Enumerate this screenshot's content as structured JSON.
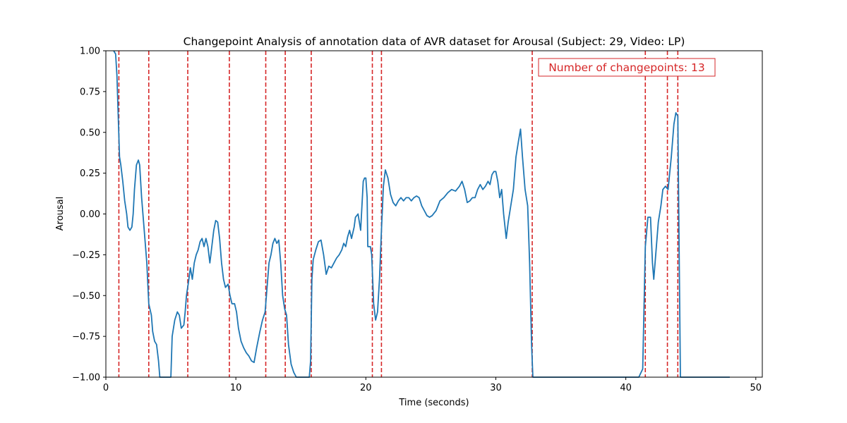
{
  "chart_data": {
    "type": "line",
    "title": "Changepoint Analysis of annotation data of AVR dataset for Arousal (Subject: 29, Video: LP)",
    "xlabel": "Time (seconds)",
    "ylabel": "Arousal",
    "xlim": [
      0,
      50.5
    ],
    "ylim": [
      -1.0,
      1.0
    ],
    "x_ticks": [
      0,
      10,
      20,
      30,
      40,
      50
    ],
    "x_tick_labels": [
      "0",
      "10",
      "20",
      "30",
      "40",
      "50"
    ],
    "y_ticks": [
      -1.0,
      -0.75,
      -0.5,
      -0.25,
      0.0,
      0.25,
      0.5,
      0.75,
      1.0
    ],
    "y_tick_labels": [
      "−1.00",
      "−0.75",
      "−0.50",
      "−0.25",
      "0.00",
      "0.25",
      "0.50",
      "0.75",
      "1.00"
    ],
    "grid": false,
    "series": [
      {
        "color": "#1f77b4",
        "points": [
          [
            0.6,
            1.0
          ],
          [
            0.75,
            0.98
          ],
          [
            0.85,
            0.85
          ],
          [
            0.95,
            0.6
          ],
          [
            1.05,
            0.35
          ],
          [
            1.15,
            0.3
          ],
          [
            1.3,
            0.2
          ],
          [
            1.45,
            0.08
          ],
          [
            1.6,
            0.0
          ],
          [
            1.7,
            -0.08
          ],
          [
            1.85,
            -0.1
          ],
          [
            2.0,
            -0.08
          ],
          [
            2.1,
            0.0
          ],
          [
            2.2,
            0.15
          ],
          [
            2.35,
            0.3
          ],
          [
            2.5,
            0.33
          ],
          [
            2.6,
            0.3
          ],
          [
            2.75,
            0.1
          ],
          [
            2.9,
            -0.05
          ],
          [
            3.05,
            -0.2
          ],
          [
            3.15,
            -0.3
          ],
          [
            3.3,
            -0.55
          ],
          [
            3.5,
            -0.62
          ],
          [
            3.6,
            -0.72
          ],
          [
            3.75,
            -0.78
          ],
          [
            3.9,
            -0.8
          ],
          [
            4.05,
            -0.9
          ],
          [
            4.15,
            -1.0
          ],
          [
            5.0,
            -1.0
          ],
          [
            5.1,
            -0.75
          ],
          [
            5.3,
            -0.65
          ],
          [
            5.5,
            -0.6
          ],
          [
            5.65,
            -0.62
          ],
          [
            5.8,
            -0.7
          ],
          [
            6.0,
            -0.68
          ],
          [
            6.1,
            -0.6
          ],
          [
            6.2,
            -0.5
          ],
          [
            6.35,
            -0.42
          ],
          [
            6.5,
            -0.33
          ],
          [
            6.65,
            -0.4
          ],
          [
            6.8,
            -0.3
          ],
          [
            6.95,
            -0.25
          ],
          [
            7.1,
            -0.22
          ],
          [
            7.25,
            -0.17
          ],
          [
            7.4,
            -0.15
          ],
          [
            7.55,
            -0.2
          ],
          [
            7.7,
            -0.15
          ],
          [
            7.85,
            -0.2
          ],
          [
            8.0,
            -0.3
          ],
          [
            8.15,
            -0.2
          ],
          [
            8.3,
            -0.1
          ],
          [
            8.45,
            -0.04
          ],
          [
            8.6,
            -0.05
          ],
          [
            8.75,
            -0.15
          ],
          [
            8.9,
            -0.3
          ],
          [
            9.05,
            -0.4
          ],
          [
            9.2,
            -0.45
          ],
          [
            9.4,
            -0.43
          ],
          [
            9.55,
            -0.5
          ],
          [
            9.7,
            -0.55
          ],
          [
            9.9,
            -0.55
          ],
          [
            10.05,
            -0.6
          ],
          [
            10.2,
            -0.7
          ],
          [
            10.4,
            -0.78
          ],
          [
            10.6,
            -0.82
          ],
          [
            10.8,
            -0.85
          ],
          [
            11.0,
            -0.87
          ],
          [
            11.2,
            -0.9
          ],
          [
            11.4,
            -0.91
          ],
          [
            11.6,
            -0.82
          ],
          [
            11.85,
            -0.72
          ],
          [
            12.05,
            -0.65
          ],
          [
            12.25,
            -0.6
          ],
          [
            12.4,
            -0.45
          ],
          [
            12.55,
            -0.3
          ],
          [
            12.7,
            -0.25
          ],
          [
            12.85,
            -0.18
          ],
          [
            13.0,
            -0.15
          ],
          [
            13.15,
            -0.18
          ],
          [
            13.3,
            -0.16
          ],
          [
            13.45,
            -0.3
          ],
          [
            13.6,
            -0.5
          ],
          [
            13.75,
            -0.58
          ],
          [
            13.9,
            -0.62
          ],
          [
            14.05,
            -0.8
          ],
          [
            14.25,
            -0.92
          ],
          [
            14.45,
            -0.97
          ],
          [
            14.65,
            -1.0
          ],
          [
            15.65,
            -1.0
          ],
          [
            15.75,
            -0.9
          ],
          [
            15.85,
            -0.4
          ],
          [
            15.95,
            -0.28
          ],
          [
            16.15,
            -0.22
          ],
          [
            16.35,
            -0.17
          ],
          [
            16.55,
            -0.16
          ],
          [
            16.75,
            -0.25
          ],
          [
            16.95,
            -0.37
          ],
          [
            17.15,
            -0.32
          ],
          [
            17.35,
            -0.33
          ],
          [
            17.55,
            -0.3
          ],
          [
            17.75,
            -0.27
          ],
          [
            17.95,
            -0.25
          ],
          [
            18.15,
            -0.22
          ],
          [
            18.3,
            -0.18
          ],
          [
            18.45,
            -0.2
          ],
          [
            18.6,
            -0.14
          ],
          [
            18.75,
            -0.1
          ],
          [
            18.9,
            -0.15
          ],
          [
            19.1,
            -0.08
          ],
          [
            19.2,
            -0.02
          ],
          [
            19.4,
            0.0
          ],
          [
            19.6,
            -0.1
          ],
          [
            19.8,
            0.2
          ],
          [
            19.9,
            0.22
          ],
          [
            20.0,
            0.22
          ],
          [
            20.1,
            0.1
          ],
          [
            20.15,
            -0.2
          ],
          [
            20.25,
            -0.2
          ],
          [
            20.35,
            -0.2
          ],
          [
            20.45,
            -0.25
          ],
          [
            20.6,
            -0.55
          ],
          [
            20.75,
            -0.65
          ],
          [
            20.9,
            -0.6
          ],
          [
            21.05,
            -0.4
          ],
          [
            21.2,
            -0.1
          ],
          [
            21.35,
            0.17
          ],
          [
            21.5,
            0.27
          ],
          [
            21.7,
            0.22
          ],
          [
            21.9,
            0.12
          ],
          [
            22.1,
            0.07
          ],
          [
            22.3,
            0.05
          ],
          [
            22.5,
            0.08
          ],
          [
            22.7,
            0.1
          ],
          [
            22.9,
            0.08
          ],
          [
            23.1,
            0.1
          ],
          [
            23.3,
            0.1
          ],
          [
            23.5,
            0.08
          ],
          [
            23.7,
            0.1
          ],
          [
            23.9,
            0.11
          ],
          [
            24.1,
            0.1
          ],
          [
            24.3,
            0.05
          ],
          [
            24.5,
            0.02
          ],
          [
            24.7,
            -0.01
          ],
          [
            24.9,
            -0.02
          ],
          [
            25.1,
            -0.01
          ],
          [
            25.4,
            0.02
          ],
          [
            25.7,
            0.08
          ],
          [
            26.0,
            0.1
          ],
          [
            26.3,
            0.13
          ],
          [
            26.6,
            0.15
          ],
          [
            26.9,
            0.14
          ],
          [
            27.2,
            0.17
          ],
          [
            27.4,
            0.2
          ],
          [
            27.6,
            0.15
          ],
          [
            27.8,
            0.07
          ],
          [
            28.0,
            0.08
          ],
          [
            28.2,
            0.1
          ],
          [
            28.4,
            0.1
          ],
          [
            28.6,
            0.15
          ],
          [
            28.8,
            0.18
          ],
          [
            29.0,
            0.15
          ],
          [
            29.2,
            0.17
          ],
          [
            29.4,
            0.2
          ],
          [
            29.55,
            0.18
          ],
          [
            29.7,
            0.24
          ],
          [
            29.85,
            0.26
          ],
          [
            30.0,
            0.26
          ],
          [
            30.15,
            0.2
          ],
          [
            30.3,
            0.1
          ],
          [
            30.45,
            0.15
          ],
          [
            30.6,
            0.0
          ],
          [
            30.8,
            -0.15
          ],
          [
            30.95,
            -0.05
          ],
          [
            31.15,
            0.05
          ],
          [
            31.35,
            0.15
          ],
          [
            31.55,
            0.35
          ],
          [
            31.75,
            0.45
          ],
          [
            31.9,
            0.52
          ],
          [
            32.05,
            0.35
          ],
          [
            32.25,
            0.15
          ],
          [
            32.45,
            0.05
          ],
          [
            32.6,
            -0.3
          ],
          [
            32.75,
            -0.8
          ],
          [
            32.85,
            -1.0
          ],
          [
            41.0,
            -1.0
          ],
          [
            41.3,
            -0.95
          ],
          [
            41.5,
            -0.2
          ],
          [
            41.7,
            -0.02
          ],
          [
            41.9,
            -0.02
          ],
          [
            42.05,
            -0.3
          ],
          [
            42.15,
            -0.4
          ],
          [
            42.3,
            -0.25
          ],
          [
            42.5,
            -0.05
          ],
          [
            42.7,
            0.05
          ],
          [
            42.85,
            0.15
          ],
          [
            43.05,
            0.17
          ],
          [
            43.25,
            0.15
          ],
          [
            43.5,
            0.35
          ],
          [
            43.7,
            0.55
          ],
          [
            43.85,
            0.62
          ],
          [
            44.0,
            0.6
          ],
          [
            44.2,
            -1.0
          ],
          [
            48.0,
            -1.0
          ]
        ]
      }
    ],
    "changepoints": [
      1.0,
      3.3,
      6.3,
      9.5,
      12.3,
      13.8,
      15.8,
      20.5,
      21.2,
      32.8,
      41.5,
      43.2,
      44.0
    ],
    "changepoint_color": "#d62728",
    "annotation": {
      "text": "Number of changepoints: 13",
      "color": "#d62728",
      "position": "top-right"
    }
  }
}
